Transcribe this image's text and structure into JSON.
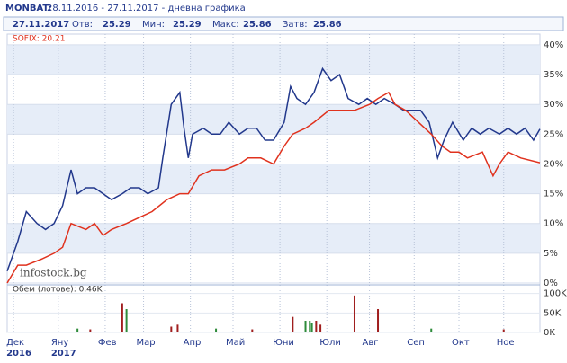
{
  "header": {
    "symbol": "MONBAT:",
    "range": "28.11.2016 - 27.11.2017 - дневна графика"
  },
  "quote": {
    "date": "27.11.2017",
    "items": [
      {
        "label": "Отв:",
        "value": 25.29
      },
      {
        "label": "Мин:",
        "value": 25.29
      },
      {
        "label": "Макс:",
        "value": 25.86
      },
      {
        "label": "Затв:",
        "value": 25.86
      }
    ]
  },
  "chart_data": [
    {
      "type": "line",
      "annotation": "SOFIX: 20.21",
      "watermark": "infostock.bg",
      "xlim": [
        0,
        250
      ],
      "ylim": [
        0,
        41.8
      ],
      "yticks": [
        {
          "value": 0,
          "label": "0%"
        },
        {
          "value": 5,
          "label": "5%"
        },
        {
          "value": 10,
          "label": "10%"
        },
        {
          "value": 15,
          "label": "15%"
        },
        {
          "value": 20,
          "label": "20%"
        },
        {
          "value": 25,
          "label": "25%"
        },
        {
          "value": 30,
          "label": "30%"
        },
        {
          "value": 35,
          "label": "35%"
        },
        {
          "value": 40,
          "label": "40%"
        }
      ],
      "xticks": [
        {
          "value": 3,
          "label": "Дек",
          "year": "2016"
        },
        {
          "value": 24,
          "label": "Яну",
          "year": "2017"
        },
        {
          "value": 46,
          "label": "Фев"
        },
        {
          "value": 64,
          "label": "Мар"
        },
        {
          "value": 86,
          "label": "Апр"
        },
        {
          "value": 106,
          "label": "Май"
        },
        {
          "value": 128,
          "label": "Юни"
        },
        {
          "value": 150,
          "label": "Юли"
        },
        {
          "value": 170,
          "label": "Авг"
        },
        {
          "value": 191,
          "label": "Сеп"
        },
        {
          "value": 212,
          "label": "Окт"
        },
        {
          "value": 233,
          "label": "Ное"
        }
      ],
      "series": [
        {
          "color": "#22388c",
          "x": [
            0,
            5,
            9,
            14,
            18,
            22,
            26,
            30,
            33,
            37,
            41,
            45,
            49,
            54,
            58,
            62,
            66,
            71,
            73,
            77,
            81,
            83,
            85,
            87,
            92,
            96,
            100,
            104,
            109,
            113,
            117,
            121,
            125,
            130,
            133,
            136,
            140,
            144,
            148,
            152,
            156,
            160,
            165,
            169,
            173,
            177,
            182,
            186,
            190,
            194,
            198,
            202,
            205,
            209,
            214,
            218,
            222,
            226,
            231,
            235,
            239,
            243,
            247,
            250
          ],
          "values": [
            2,
            7,
            12,
            10,
            9,
            10,
            13,
            19,
            15,
            16,
            16,
            15,
            14,
            15,
            16,
            16,
            15,
            16,
            21,
            30,
            32,
            26,
            21,
            25,
            26,
            25,
            25,
            27,
            25,
            26,
            26,
            24,
            24,
            27,
            33,
            31,
            30,
            32,
            36,
            34,
            35,
            31,
            30,
            31,
            30,
            31,
            30,
            29,
            29,
            29,
            27,
            21,
            24,
            27,
            24,
            26,
            25,
            26,
            25,
            26,
            25,
            26,
            24,
            25.86
          ]
        },
        {
          "color": "#e0321e",
          "x": [
            0,
            5,
            9,
            16,
            22,
            26,
            30,
            37,
            41,
            45,
            49,
            56,
            62,
            68,
            75,
            81,
            85,
            90,
            96,
            102,
            109,
            113,
            119,
            125,
            130,
            134,
            140,
            144,
            151,
            157,
            163,
            170,
            174,
            179,
            182,
            187,
            193,
            199,
            204,
            208,
            212,
            216,
            223,
            228,
            231,
            235,
            241,
            250
          ],
          "values": [
            0,
            3,
            3,
            4,
            5,
            6,
            10,
            9,
            10,
            8,
            9,
            10,
            11,
            12,
            14,
            15,
            15,
            18,
            19,
            19,
            20,
            21,
            21,
            20,
            23,
            25,
            26,
            27,
            29,
            29,
            29,
            30,
            31,
            32,
            30,
            29,
            27,
            25,
            23,
            22,
            22,
            21,
            22,
            18,
            20,
            22,
            21,
            20.21
          ]
        }
      ]
    },
    {
      "type": "bar",
      "title": "Обем (лотове): 0.46K",
      "xlim": [
        0,
        250
      ],
      "ylim": [
        0,
        120
      ],
      "yticks": [
        {
          "value": 0,
          "label": "0K"
        },
        {
          "value": 50,
          "label": "50K"
        },
        {
          "value": 100,
          "label": "100K"
        }
      ],
      "x": [
        33,
        39,
        54,
        56,
        77,
        80,
        98,
        115,
        134,
        140,
        142,
        143,
        145,
        147,
        163,
        174,
        199,
        233
      ],
      "values": [
        10,
        8,
        75,
        60,
        15,
        20,
        10,
        8,
        40,
        30,
        30,
        25,
        30,
        20,
        95,
        60,
        10,
        8
      ],
      "colors": [
        "#2e8b3a",
        "#a01e1e",
        "#a01e1e",
        "#2e8b3a",
        "#a01e1e",
        "#a01e1e",
        "#2e8b3a",
        "#a01e1e",
        "#a01e1e",
        "#2e8b3a",
        "#2e8b3a",
        "#2e8b3a",
        "#a01e1e",
        "#a01e1e",
        "#a01e1e",
        "#a01e1e",
        "#2e8b3a",
        "#a01e1e"
      ]
    }
  ]
}
